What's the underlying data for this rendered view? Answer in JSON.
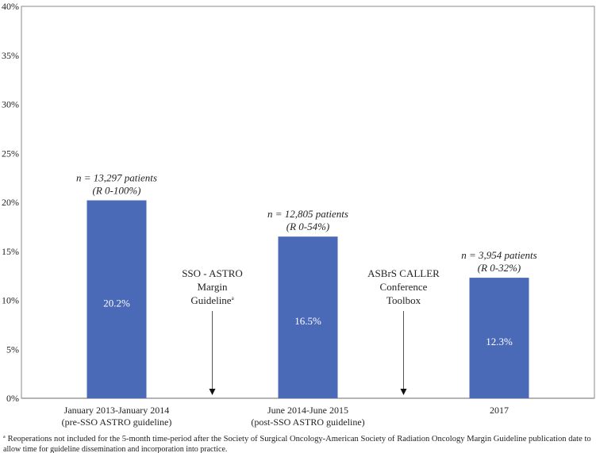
{
  "chart_data": {
    "type": "bar",
    "categories": [
      [
        "January 2013-January 2014",
        "(pre-SSO ASTRO guideline)"
      ],
      [
        "June 2014-June 2015",
        "(post-SSO ASTRO guideline)"
      ],
      [
        "2017"
      ]
    ],
    "values": [
      20.2,
      16.5,
      12.3
    ],
    "value_labels": [
      "20.2%",
      "16.5%",
      "12.3%"
    ],
    "bar_annotations": [
      [
        "n = 13,297 patients",
        "(R 0-100%)"
      ],
      [
        "n = 12,805 patients",
        "(R 0-54%)"
      ],
      [
        "n = 3,954 patients",
        "(R 0-32%)"
      ]
    ],
    "event_annotations": [
      {
        "lines": [
          "SSO - ASTRO",
          "Margin",
          "Guideline"
        ],
        "superscript": "a",
        "after_category": 0
      },
      {
        "lines": [
          "ASBrS CALLER",
          "Conference",
          "Toolbox"
        ],
        "superscript": "",
        "after_category": 1
      }
    ],
    "ylim": [
      0,
      40
    ],
    "yticks": [
      "0%",
      "5%",
      "10%",
      "15%",
      "20%",
      "25%",
      "30%",
      "35%",
      "40%"
    ],
    "title": "",
    "xlabel": "",
    "ylabel": "",
    "grid": false,
    "bar_color": "#4A69B7",
    "footnote": {
      "marker": "a",
      "lines": [
        "Reoperations not included for the 5-month time-period after the Society of Surgical Oncology-American Society of Radiation Oncology Margin Guideline publication date to",
        "allow time for guideline dissemination and incorporation into practice."
      ]
    }
  }
}
